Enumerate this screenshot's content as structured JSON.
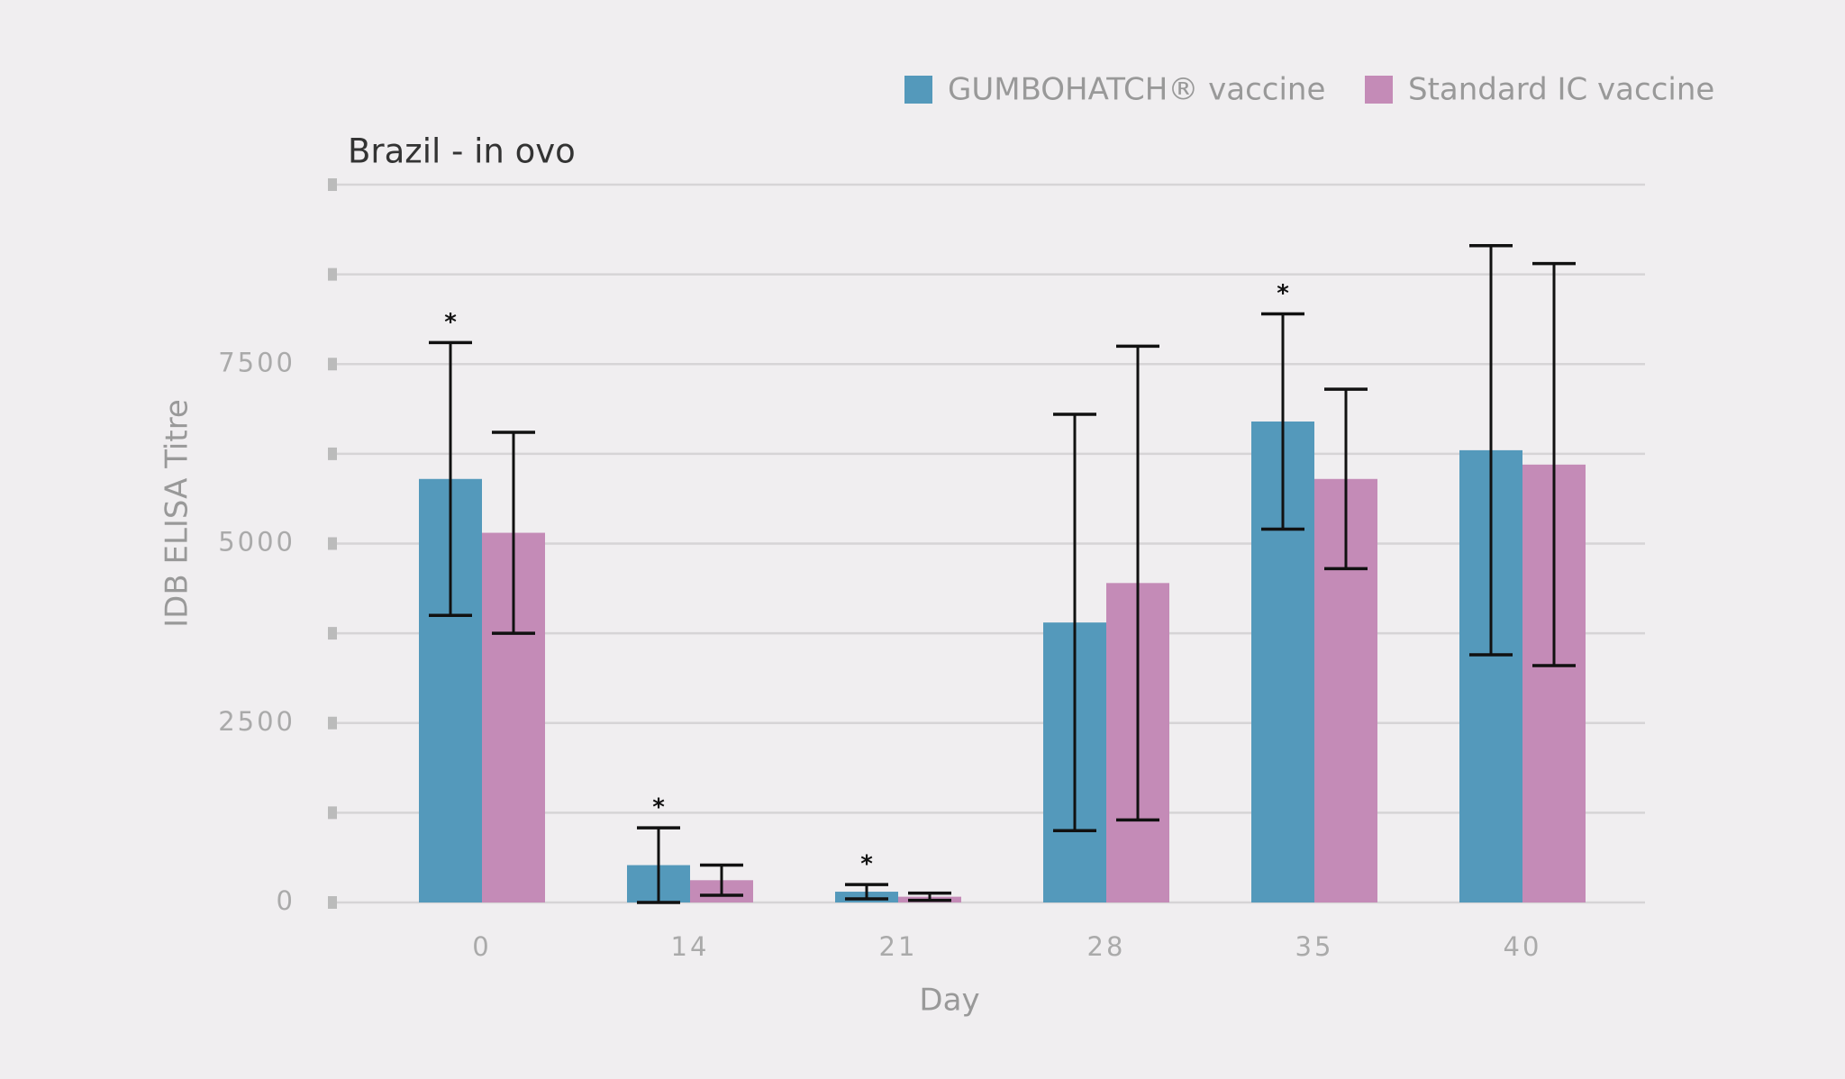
{
  "chart_data": {
    "type": "bar",
    "title": "Brazil - in ovo",
    "x_label": "Day",
    "y_label": "IDB ELISA Titre",
    "categories": [
      "0",
      "14",
      "21",
      "28",
      "35",
      "40"
    ],
    "series": [
      {
        "name": "GUMBOHATCH® vaccine",
        "color": "#5499bb",
        "values": [
          5900,
          520,
          150,
          3900,
          6700,
          6300
        ],
        "errors": [
          1900,
          520,
          100,
          2900,
          1500,
          2850
        ],
        "markers": [
          "*",
          "*",
          "*",
          null,
          "*",
          null
        ]
      },
      {
        "name": "Standard IC vaccine",
        "color": "#c48bb7",
        "values": [
          5150,
          310,
          80,
          4450,
          5900,
          6100
        ],
        "errors": [
          1400,
          210,
          50,
          3300,
          1250,
          2800
        ]
      }
    ],
    "ylim": [
      0,
      10000
    ],
    "yticks": [
      0,
      2500,
      5000,
      7500
    ],
    "yminor": [
      1250,
      3750,
      6250,
      8750,
      10000
    ],
    "grid": true,
    "legend": "top-right"
  }
}
